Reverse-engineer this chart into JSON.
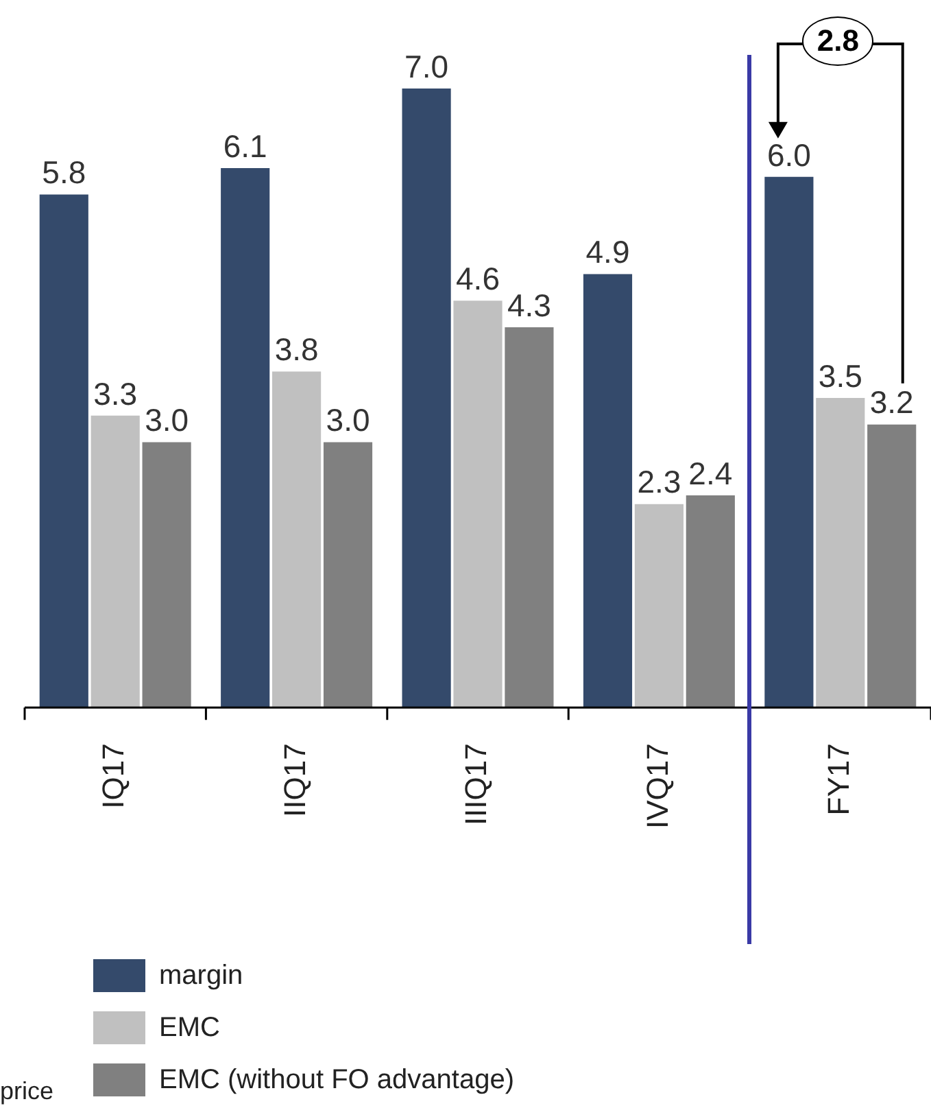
{
  "chart_data": {
    "type": "bar",
    "categories": [
      "IQ17",
      "IIQ17",
      "IIIQ17",
      "IVQ17",
      "FY17"
    ],
    "series": [
      {
        "name": "margin",
        "color": "#344a6b",
        "values": [
          5.8,
          6.1,
          7.0,
          4.9,
          6.0
        ],
        "value_labels": [
          "5.8",
          "6.1",
          "7.0",
          "4.9",
          "6.0"
        ]
      },
      {
        "name": "EMC",
        "color": "#c0c0c0",
        "values": [
          3.3,
          3.8,
          4.6,
          2.3,
          3.5
        ],
        "value_labels": [
          "3.3",
          "3.8",
          "4.6",
          "2.3",
          "3.5"
        ]
      },
      {
        "name": "EMC (without FO advantage)",
        "color": "#808080",
        "values": [
          3.0,
          3.0,
          4.3,
          2.4,
          3.2
        ],
        "value_labels": [
          "3.0",
          "3.0",
          "4.3",
          "2.4",
          "3.2"
        ]
      }
    ],
    "tick_labels": "x",
    "grid": false,
    "legend": "bottom left",
    "annotations": [
      "2.8",
      "price"
    ]
  }
}
